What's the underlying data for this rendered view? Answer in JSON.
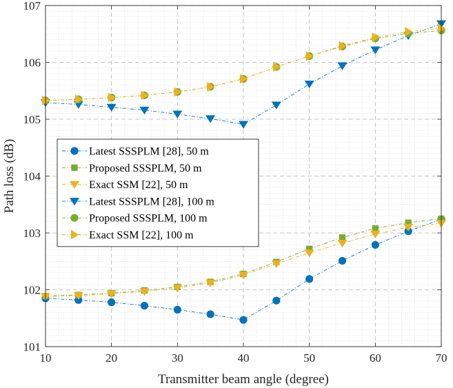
{
  "chart_data": {
    "type": "line",
    "title": "",
    "xlabel": "Transmitter beam angle (degree)",
    "ylabel": "Path loss (dB)",
    "xlim": [
      10,
      70
    ],
    "ylim": [
      101,
      107
    ],
    "xticks": [
      10,
      20,
      30,
      40,
      50,
      60,
      70
    ],
    "yticks": [
      101,
      102,
      103,
      104,
      105,
      106,
      107
    ],
    "grid": true,
    "legend_position": "center-left",
    "x": [
      10,
      15,
      20,
      25,
      30,
      35,
      40,
      45,
      50,
      55,
      60,
      65,
      70
    ],
    "series": [
      {
        "name": "Latest SSSPLM [28], 50 m",
        "marker": "circle",
        "color": "#0072BD",
        "values": [
          101.85,
          101.82,
          101.78,
          101.72,
          101.65,
          101.57,
          101.47,
          101.81,
          102.19,
          102.51,
          102.79,
          103.03,
          103.24
        ]
      },
      {
        "name": "Proposed SSSPLM, 50 m",
        "marker": "square",
        "color": "#77AC30",
        "values": [
          101.89,
          101.91,
          101.94,
          101.99,
          102.05,
          102.14,
          102.28,
          102.49,
          102.72,
          102.92,
          103.08,
          103.18,
          103.25
        ]
      },
      {
        "name": "Exact SSM [22], 50 m",
        "marker": "triangle-down",
        "color": "#EDB120",
        "values": [
          101.88,
          101.9,
          101.93,
          101.97,
          102.03,
          102.12,
          102.26,
          102.46,
          102.65,
          102.82,
          102.98,
          103.1,
          103.17
        ]
      },
      {
        "name": "Latest SSSPLM [28], 100 m",
        "marker": "triangle-down",
        "color": "#0072BD",
        "values": [
          105.29,
          105.26,
          105.21,
          105.16,
          105.09,
          105.01,
          104.91,
          105.25,
          105.62,
          105.94,
          106.22,
          106.47,
          106.68
        ]
      },
      {
        "name": "Proposed SSSPLM, 100 m",
        "marker": "circle",
        "color": "#77AC30",
        "values": [
          105.33,
          105.35,
          105.38,
          105.42,
          105.48,
          105.57,
          105.71,
          105.92,
          106.11,
          106.28,
          106.42,
          106.51,
          106.56
        ]
      },
      {
        "name": "Exact SSM [22], 100 m",
        "marker": "triangle-right",
        "color": "#EDB120",
        "values": [
          105.33,
          105.35,
          105.38,
          105.42,
          105.48,
          105.57,
          105.71,
          105.92,
          106.11,
          106.29,
          106.44,
          106.54,
          106.6
        ]
      }
    ]
  }
}
